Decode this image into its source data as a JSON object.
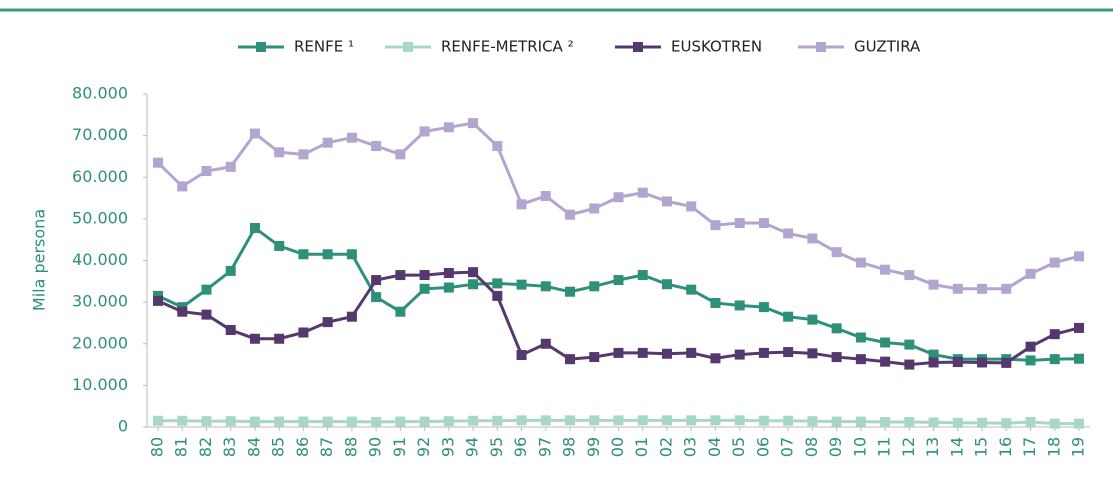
{
  "chart_data": {
    "type": "line",
    "y_label": "Mila persona",
    "categories": [
      "80",
      "81",
      "82",
      "83",
      "84",
      "85",
      "86",
      "87",
      "88",
      "90",
      "91",
      "92",
      "93",
      "94",
      "95",
      "96",
      "97",
      "98",
      "99",
      "00",
      "01",
      "02",
      "03",
      "04",
      "05",
      "06",
      "07",
      "08",
      "09",
      "10",
      "11",
      "12",
      "13",
      "14",
      "15",
      "16",
      "17",
      "18",
      "19"
    ],
    "series": [
      {
        "name": "RENFE ¹",
        "color": "#2e9078",
        "values": [
          31500,
          28800,
          33000,
          37500,
          47800,
          43500,
          41500,
          41500,
          41500,
          31200,
          27700,
          33200,
          33500,
          34300,
          34500,
          34200,
          33800,
          32500,
          33800,
          35300,
          36500,
          34300,
          33000,
          29800,
          29200,
          28800,
          26500,
          25800,
          23700,
          21500,
          20300,
          19800,
          17400,
          16300,
          16300,
          16300,
          16000,
          16300,
          16400
        ]
      },
      {
        "name": "RENFE-METRICA ²",
        "color": "#a8d8c4",
        "values": [
          1500,
          1500,
          1400,
          1400,
          1300,
          1300,
          1300,
          1300,
          1300,
          1200,
          1300,
          1300,
          1400,
          1500,
          1500,
          1600,
          1600,
          1600,
          1600,
          1600,
          1600,
          1600,
          1600,
          1600,
          1600,
          1500,
          1500,
          1400,
          1300,
          1300,
          1200,
          1200,
          1100,
          1000,
          1000,
          900,
          1200,
          800,
          800
        ]
      },
      {
        "name": "EUSKOTREN",
        "color": "#54386e",
        "values": [
          30300,
          27700,
          27000,
          23300,
          21200,
          21200,
          22700,
          25200,
          26500,
          35300,
          36500,
          36500,
          37000,
          37200,
          31500,
          17300,
          20000,
          16300,
          16800,
          17800,
          17800,
          17600,
          17800,
          16500,
          17400,
          17800,
          18000,
          17700,
          16800,
          16300,
          15700,
          15000,
          15500,
          15600,
          15500,
          15400,
          19300,
          22300,
          23800
        ]
      },
      {
        "name": "GUZTIRA",
        "color": "#b3a5cf",
        "values": [
          63500,
          57800,
          61500,
          62500,
          70500,
          66000,
          65500,
          68300,
          69500,
          67500,
          65500,
          71000,
          72000,
          73000,
          67500,
          53500,
          55500,
          51000,
          52500,
          55200,
          56300,
          54200,
          53000,
          48500,
          49000,
          49000,
          46500,
          45300,
          42000,
          39500,
          37800,
          36500,
          34200,
          33200,
          33200,
          33200,
          36800,
          39500,
          41000
        ]
      }
    ],
    "ylim": [
      0,
      80000
    ],
    "yticks": [
      0,
      {
        "value": 10000,
        "label": "10.000"
      },
      {
        "value": 20000,
        "label": "20.000"
      },
      {
        "value": 30000,
        "label": "30.000"
      },
      {
        "value": 40000,
        "label": "40.000"
      },
      {
        "value": 50000,
        "label": "50.000"
      },
      {
        "value": 60000,
        "label": "60.000"
      },
      {
        "value": 70000,
        "label": "70.000"
      },
      {
        "value": 80000,
        "label": "80.000"
      }
    ],
    "legend": "top"
  }
}
